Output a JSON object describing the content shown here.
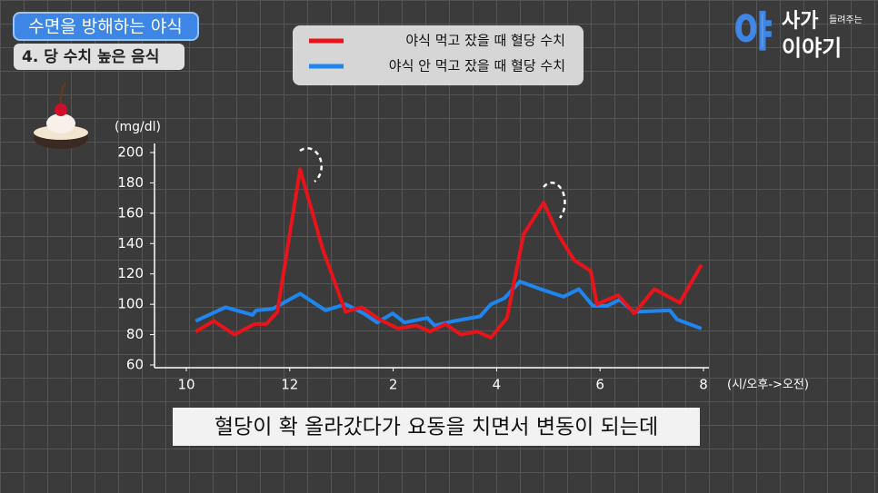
{
  "header": {
    "badge": "수면을 방해하는 야식",
    "subtitle": "4. 당 수치 높은 음식"
  },
  "logo": {
    "big": "야",
    "top": "사가",
    "small": "들려주는",
    "bottom": "이야기"
  },
  "caption": "혈당이 확 올라갔다가 요동을 치면서 변동이 되는데",
  "chart_data": {
    "type": "line",
    "y_label": "(mg/dl)",
    "x_label": "(시/오후->오전)",
    "xlim": [
      9.4,
      20.1
    ],
    "ylim": [
      60,
      200
    ],
    "xticks": [
      10,
      12,
      {
        "value": 14,
        "label": "2"
      },
      {
        "value": 16,
        "label": "4"
      },
      {
        "value": 18,
        "label": "6"
      },
      {
        "value": 20,
        "label": "8"
      }
    ],
    "yticks": [
      60,
      80,
      100,
      120,
      140,
      160,
      180,
      200
    ],
    "series": [
      {
        "name": "야식 먹고 잤을 때 혈당 수치",
        "color": "#e8141b",
        "x": [
          10.18,
          10.53,
          10.93,
          11.32,
          11.55,
          11.76,
          12.2,
          12.64,
          13.08,
          13.39,
          13.74,
          14.09,
          14.45,
          14.71,
          15.01,
          15.31,
          15.62,
          15.89,
          16.2,
          16.52,
          16.91,
          17.19,
          17.5,
          17.82,
          17.94,
          18.35,
          18.66,
          19.05,
          19.54,
          19.96
        ],
        "values": [
          82,
          89,
          80,
          87,
          87,
          95,
          189,
          136,
          95,
          98,
          90,
          84,
          86,
          82,
          87,
          80,
          82,
          78,
          91,
          146,
          167,
          146,
          129,
          122,
          100,
          106,
          94,
          110,
          101,
          126
        ]
      },
      {
        "name": "야식 안 먹고 잤을 때 혈당 수치",
        "color": "#1f86f0",
        "x": [
          10.18,
          10.76,
          11.28,
          11.35,
          11.67,
          12.2,
          12.69,
          13.08,
          13.43,
          13.69,
          13.99,
          14.22,
          14.66,
          14.8,
          15.18,
          15.68,
          15.89,
          16.15,
          16.45,
          16.85,
          17.29,
          17.59,
          17.86,
          18.14,
          18.38,
          18.65,
          19.35,
          19.49,
          19.96
        ],
        "values": [
          89,
          98,
          93,
          96,
          97,
          107,
          96,
          100,
          94,
          88,
          94,
          88,
          91,
          86,
          89,
          92,
          100,
          104,
          115,
          110,
          105,
          110,
          99,
          99,
          103,
          95,
          96,
          90,
          84
        ]
      }
    ]
  }
}
